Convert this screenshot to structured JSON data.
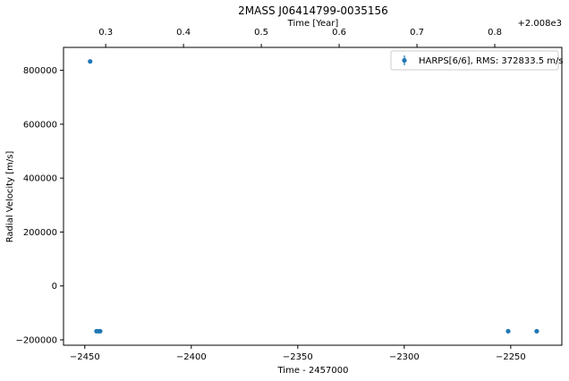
{
  "chart_data": {
    "type": "scatter",
    "title": "2MASS J06414799-0035156",
    "xlabel": "Time - 2457000",
    "ylabel": "Radial Velocity [m/s]",
    "top_xlabel": "Time [Year]",
    "top_offset_label": "+2.008e3",
    "xlim": [
      -2460,
      -2226
    ],
    "ylim": [
      -220000,
      885000
    ],
    "x_ticks": [
      -2450,
      -2400,
      -2350,
      -2300,
      -2250
    ],
    "x_tick_labels": [
      "−2450",
      "−2400",
      "−2350",
      "−2300",
      "−2250"
    ],
    "y_ticks": [
      -200000,
      0,
      200000,
      400000,
      600000,
      800000
    ],
    "y_tick_labels": [
      "−200000",
      "0",
      "200000",
      "400000",
      "600000",
      "800000"
    ],
    "top_ticks": [
      0.3,
      0.4,
      0.5,
      0.6,
      0.7,
      0.8
    ],
    "top_tick_labels": [
      "0.3",
      "0.4",
      "0.5",
      "0.6",
      "0.7",
      "0.8"
    ],
    "top_axis_years_at_xlim": [
      0.2458,
      0.8862
    ],
    "series": [
      {
        "name": "HARPS[6/6], RMS:  372833.5 m/s",
        "color": "#1f77b4",
        "x": [
          -2447.5,
          -2444.5,
          -2443.5,
          -2442.8,
          -2251.2,
          -2237.8
        ],
        "y": [
          833000,
          -168000,
          -168000,
          -168000,
          -168000,
          -168000
        ]
      }
    ],
    "legend_position": "top-right",
    "grid": false
  }
}
